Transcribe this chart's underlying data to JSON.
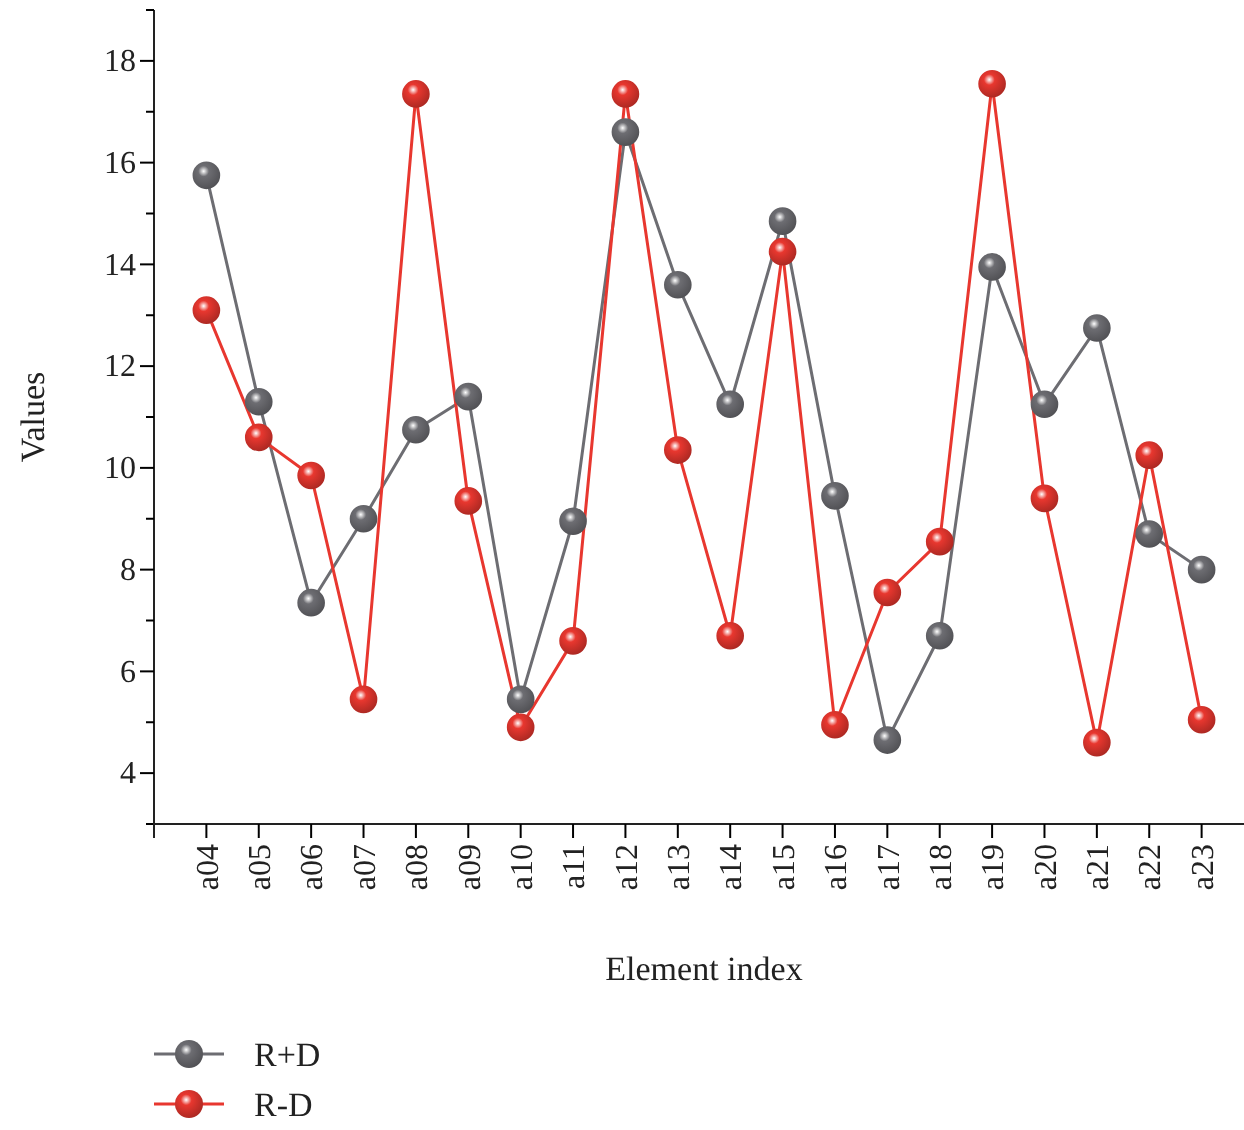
{
  "chart_data": {
    "type": "line",
    "xlabel": "Element index",
    "ylabel": "Values",
    "categories": [
      "a04",
      "a05",
      "a06",
      "a07",
      "a08",
      "a09",
      "a10",
      "a11",
      "a12",
      "a13",
      "a14",
      "a15",
      "a16",
      "a17",
      "a18",
      "a19",
      "a20",
      "a21",
      "a22",
      "a23"
    ],
    "series": [
      {
        "name": "R+D",
        "color": "#6d6d72",
        "values": [
          15.75,
          11.3,
          7.35,
          9.0,
          10.75,
          11.4,
          5.45,
          8.95,
          16.6,
          13.6,
          11.25,
          14.85,
          9.45,
          4.65,
          6.7,
          13.95,
          11.25,
          12.75,
          8.7,
          8.0
        ]
      },
      {
        "name": "R-D",
        "color": "#e8372f",
        "values": [
          13.1,
          10.6,
          9.85,
          5.45,
          17.35,
          9.35,
          4.9,
          6.6,
          17.35,
          10.35,
          6.7,
          14.25,
          4.95,
          7.55,
          8.55,
          17.55,
          9.4,
          4.6,
          10.25,
          5.05
        ]
      }
    ],
    "ylim": [
      3,
      19
    ],
    "yticks": [
      {
        "value": 3,
        "label": null
      },
      4,
      {
        "value": 5,
        "label": null
      },
      6,
      {
        "value": 7,
        "label": null
      },
      8,
      {
        "value": 9,
        "label": null
      },
      10,
      {
        "value": 11,
        "label": null
      },
      12,
      {
        "value": 13,
        "label": null
      },
      14,
      {
        "value": 15,
        "label": null
      },
      16,
      {
        "value": 17,
        "label": null
      },
      18,
      {
        "value": 19,
        "label": null
      }
    ],
    "marker": "circle",
    "line_style": "solid",
    "legend": "bottom left",
    "grid": false
  }
}
